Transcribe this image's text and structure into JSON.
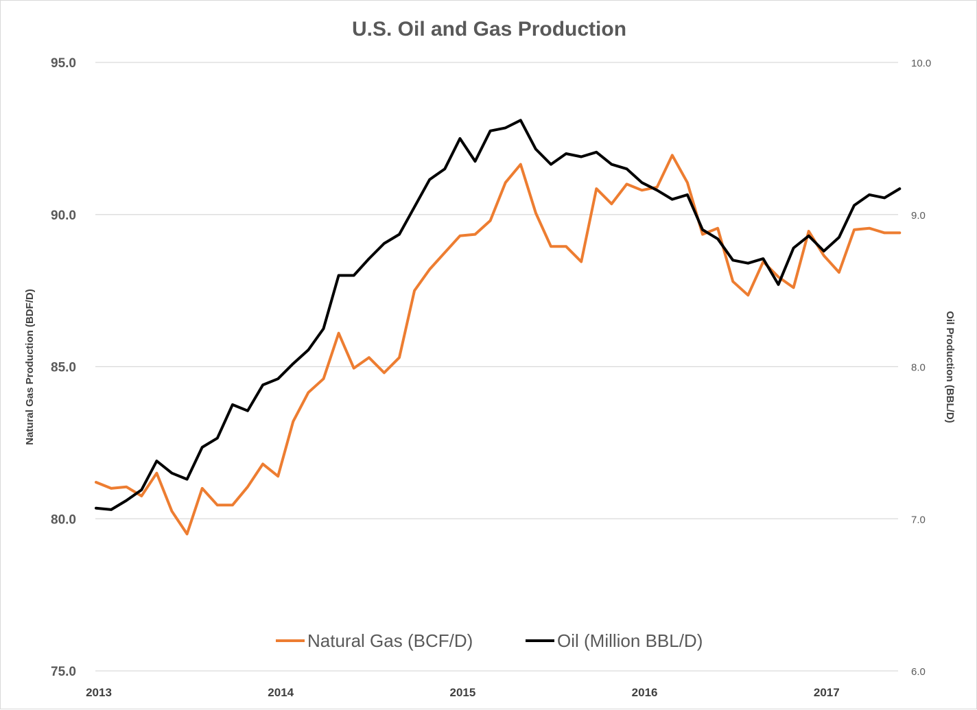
{
  "chart_data": {
    "type": "line",
    "title": "U.S. Oil and Gas Production",
    "ylabel_left": "Natural Gas Production (BDF/D)",
    "ylabel_right": "Oil Production (BBL/D)",
    "ylim_left": [
      75,
      95
    ],
    "ylim_right": [
      6,
      10
    ],
    "yticks_left": [
      "75.0",
      "80.0",
      "85.0",
      "90.0",
      "95.0"
    ],
    "yticks_right": [
      "6.0",
      "7.0",
      "8.0",
      "9.0",
      "10.0"
    ],
    "xticks": [
      "2013",
      "2014",
      "2015",
      "2016",
      "2017"
    ],
    "x_start": "2013-01",
    "x_end": "2017-05",
    "grid": true,
    "legend_position": "bottom",
    "series": [
      {
        "name": "Natural Gas (BCF/D)",
        "axis": "left",
        "color": "#ed7d31",
        "values": [
          81.2,
          81.0,
          81.05,
          80.75,
          81.5,
          80.25,
          79.5,
          81.0,
          80.45,
          80.45,
          81.05,
          81.8,
          81.4,
          83.2,
          84.15,
          84.6,
          86.1,
          84.95,
          85.3,
          84.8,
          85.3,
          87.5,
          88.2,
          88.75,
          89.3,
          89.35,
          89.8,
          91.05,
          91.65,
          90.05,
          88.95,
          88.95,
          88.45,
          90.85,
          90.35,
          91.0,
          90.8,
          90.9,
          91.95,
          91.05,
          89.35,
          89.55,
          87.8,
          87.35,
          88.45,
          87.95,
          87.6,
          89.45,
          88.65,
          88.1,
          89.5,
          89.55,
          89.4,
          89.4
        ]
      },
      {
        "name": "Oil (Million BBL/D)",
        "axis": "right",
        "color": "#000000",
        "values": [
          7.07,
          7.06,
          7.12,
          7.19,
          7.38,
          7.3,
          7.26,
          7.47,
          7.53,
          7.75,
          7.71,
          7.88,
          7.92,
          8.02,
          8.11,
          8.25,
          8.6,
          8.6,
          8.71,
          8.81,
          8.87,
          9.05,
          9.23,
          9.3,
          9.5,
          9.35,
          9.55,
          9.57,
          9.62,
          9.43,
          9.33,
          9.4,
          9.38,
          9.41,
          9.33,
          9.3,
          9.21,
          9.16,
          9.1,
          9.13,
          8.9,
          8.84,
          8.7,
          8.68,
          8.71,
          8.54,
          8.78,
          8.86,
          8.76,
          8.85,
          9.06,
          9.13,
          9.11,
          9.17
        ]
      }
    ]
  }
}
